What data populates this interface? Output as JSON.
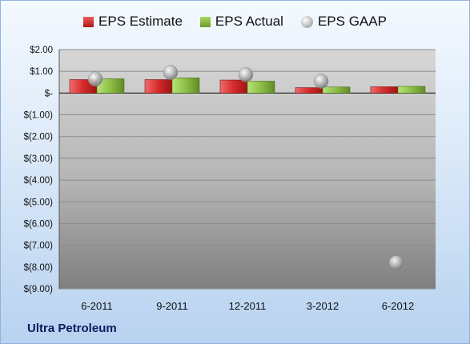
{
  "company": "Ultra Petroleum",
  "legend": {
    "estimate": "EPS Estimate",
    "actual": "EPS Actual",
    "gaap": "EPS GAAP"
  },
  "colors": {
    "estimate": "#d42a2a",
    "actual": "#8cbf45",
    "gaap": "#b0b0b0"
  },
  "chart_data": {
    "type": "bar",
    "categories": [
      "6-2011",
      "9-2011",
      "12-2011",
      "3-2012",
      "6-2012"
    ],
    "series": [
      {
        "name": "EPS Estimate",
        "values": [
          0.62,
          0.62,
          0.6,
          0.25,
          0.29
        ]
      },
      {
        "name": "EPS Actual",
        "values": [
          0.66,
          0.7,
          0.55,
          0.28,
          0.31
        ]
      },
      {
        "name": "EPS GAAP",
        "type": "scatter",
        "values": [
          0.65,
          0.95,
          0.85,
          0.55,
          -7.8
        ]
      }
    ],
    "yticks": [
      "$2.00",
      "$1.00",
      "$-",
      "$(1.00)",
      "$(2.00)",
      "$(3.00)",
      "$(4.00)",
      "$(5.00)",
      "$(6.00)",
      "$(7.00)",
      "$(8.00)",
      "$(9.00)"
    ],
    "ylim": [
      -9,
      2
    ],
    "grid": true,
    "legend_position": "top"
  }
}
